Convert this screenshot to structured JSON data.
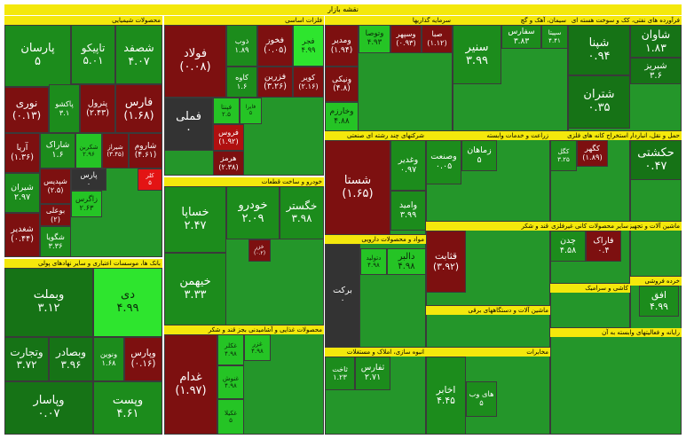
{
  "title": "نقشه بازار",
  "sectors": [
    {
      "name": "محصولات شیمیایی",
      "cells": [
        {
          "name": "پارسان",
          "label": "۵",
          "color": "#1c8c1c"
        },
        {
          "name": "تاپیکو",
          "label": "۵.۰۱",
          "color": "#1c8c1c"
        },
        {
          "name": "شصفد",
          "label": "۴.۰۷",
          "color": "#1c8c1c"
        },
        {
          "name": "نوری",
          "label": "(۰.۱۳)",
          "color": "#7d1010"
        },
        {
          "name": "پاکشو",
          "label": "۳.۱",
          "color": "#1c8c1c"
        },
        {
          "name": "پترول",
          "label": "(۲.۴۳)",
          "color": "#7d1010"
        },
        {
          "name": "فارس",
          "label": "(۱.۶۸)",
          "color": "#7d1010"
        },
        {
          "name": "آریا",
          "label": "(۱.۳۶)",
          "color": "#7d1010"
        },
        {
          "name": "شاراک",
          "label": "۱.۶",
          "color": "#1c8c1c"
        },
        {
          "name": "شکربن",
          "label": "۲.۹۶",
          "color": "#25c425"
        },
        {
          "name": "شیراز",
          "label": "(۳.۴۵)",
          "color": "#7d1010"
        },
        {
          "name": "شاروم",
          "label": "(۴.۶۱)",
          "color": "#7d1010"
        },
        {
          "name": "شیران",
          "label": "۲.۹۷",
          "color": "#1c8c1c"
        },
        {
          "name": "شپدیس",
          "label": "(۲.۵)",
          "color": "#7d1010"
        },
        {
          "name": "پارس",
          "label": "۰",
          "color": "#333333"
        },
        {
          "name": "کلر",
          "label": "۵",
          "color": "#e31414"
        },
        {
          "name": "زاگرس",
          "label": "۲.۶۳",
          "color": "#25c425"
        },
        {
          "name": "بوعلی",
          "label": "(۲)",
          "color": "#7d1010"
        },
        {
          "name": "شغدیر",
          "label": "(۰.۴۴)",
          "color": "#7d1010"
        },
        {
          "name": "شگویا",
          "label": "۳.۳۶",
          "color": "#1c8c1c"
        }
      ]
    },
    {
      "name": "بانک ها، موسسات اعتباری و سایر نهادهای پولی",
      "cells": [
        {
          "name": "وبملت",
          "label": "۳.۱۲",
          "color": "#167316"
        },
        {
          "name": "دی",
          "label": "۴.۹۹",
          "color": "#2ee52e"
        },
        {
          "name": "وتجارت",
          "label": "۳.۷۲",
          "color": "#167316"
        },
        {
          "name": "وبصادر",
          "label": "۳.۹۶",
          "color": "#167316"
        },
        {
          "name": "ونوین",
          "label": "۱.۶۸",
          "color": "#1c8c1c"
        },
        {
          "name": "وپارس",
          "label": "(۰.۱۶)",
          "color": "#7d1010"
        },
        {
          "name": "وپاسار",
          "label": "۰.۰۷",
          "color": "#167316"
        },
        {
          "name": "وپست",
          "label": "۴.۶۱",
          "color": "#1c8c1c"
        }
      ]
    },
    {
      "name": "فلزات اساسی",
      "cells": [
        {
          "name": "فولاد",
          "label": "(۰.۰۸)",
          "color": "#7d1010"
        },
        {
          "name": "ذوب",
          "label": "۱.۸۹",
          "color": "#1c8c1c"
        },
        {
          "name": "فخوز",
          "label": "(۰.۰۵)",
          "color": "#7d1010"
        },
        {
          "name": "فجر",
          "label": "۴.۹۹",
          "color": "#2ee52e"
        },
        {
          "name": "کاوه",
          "label": "۱.۶",
          "color": "#1c8c1c"
        },
        {
          "name": "فزرین",
          "label": "(۳.۲۶)",
          "color": "#7d1010"
        },
        {
          "name": "کویر",
          "label": "(۲.۱۶)",
          "color": "#7d1010"
        },
        {
          "name": "فملی",
          "label": "۰",
          "color": "#333333"
        },
        {
          "name": "فپنتا",
          "label": "۲.۵",
          "color": "#25c425"
        },
        {
          "name": "فایرا",
          "label": "۵",
          "color": "#25c425"
        },
        {
          "name": "فروس",
          "label": "(۱.۹۲)",
          "color": "#b01010"
        },
        {
          "name": "هرمز",
          "label": "(۲.۳۸)",
          "color": "#7d1010"
        }
      ]
    },
    {
      "name": "خودرو و ساخت قطعات",
      "cells": [
        {
          "name": "خساپا",
          "label": "۲.۴۷",
          "color": "#1c8c1c"
        },
        {
          "name": "خودرو",
          "label": "۲.۰۹",
          "color": "#1c8c1c"
        },
        {
          "name": "خگستر",
          "label": "۳.۹۸",
          "color": "#1c8c1c"
        },
        {
          "name": "خیهمن",
          "label": "۳.۳۳",
          "color": "#1c8c1c"
        },
        {
          "name": "خزر",
          "label": "(۰.۲)",
          "color": "#7d1010"
        }
      ]
    },
    {
      "name": "محصولات غذایی و آشامیدنی بجز قند و شکر",
      "cells": [
        {
          "name": "غدام",
          "label": "(۱.۹۷)",
          "color": "#7d1010"
        },
        {
          "name": "غکلر",
          "label": "۴.۹۸",
          "color": "#25c425"
        },
        {
          "name": "غنوش",
          "label": "۴.۹۸",
          "color": "#25c425"
        },
        {
          "name": "غکیلا",
          "label": "۵",
          "color": "#25c425"
        },
        {
          "name": "غزر",
          "label": "۴.۹۸",
          "color": "#25c425"
        }
      ]
    },
    {
      "name": "سرمایه گذاریها",
      "cells": [
        {
          "name": "ومدیر",
          "label": "(۱.۹۴)",
          "color": "#7d1010"
        },
        {
          "name": "وتوصا",
          "label": "۴.۹۳",
          "color": "#25c425"
        },
        {
          "name": "وسپهر",
          "label": "(۰.۹۳)",
          "color": "#7d1010"
        },
        {
          "name": "صبا",
          "label": "(۱.۱۲)",
          "color": "#7d1010"
        },
        {
          "name": "ونیکی",
          "label": "(۴.۸)",
          "color": "#7d1010"
        },
        {
          "name": "وخارزم",
          "label": "۴.۸۸",
          "color": "#25c425"
        }
      ]
    },
    {
      "name": "شرکتهای چند رشته ای صنعتی",
      "cells": [
        {
          "name": "شستا",
          "label": "(۱.۶۵)",
          "color": "#7d1010"
        },
        {
          "name": "وغدیر",
          "label": "۰.۹۷",
          "color": "#1c8c1c"
        },
        {
          "name": "وامید",
          "label": "۳.۹۹",
          "color": "#1c8c1c"
        }
      ]
    },
    {
      "name": "مواد و محصولات دارویی",
      "cells": [
        {
          "name": "برکت",
          "label": "۰",
          "color": "#333333"
        },
        {
          "name": "دتولید",
          "label": "۴.۹۸",
          "color": "#25c425"
        },
        {
          "name": "دالبر",
          "label": "۴.۹۸",
          "color": "#25c425"
        }
      ]
    },
    {
      "name": "انبوه سازی، املاک و مستغلات",
      "cells": [
        {
          "name": "ثاخت",
          "label": "۱.۲۳",
          "color": "#1c8c1c"
        },
        {
          "name": "ثفارس",
          "label": "۲.۷۱",
          "color": "#1c8c1c"
        }
      ]
    },
    {
      "name": "سیمان، آهک و گچ",
      "cells": [
        {
          "name": "سنیر",
          "label": "۳.۹۹",
          "color": "#1c8c1c"
        },
        {
          "name": "سفارس",
          "label": "۳.۸۳",
          "color": "#1c8c1c"
        },
        {
          "name": "سپیتا",
          "label": "۴.۴۱",
          "color": "#1c8c1c"
        }
      ]
    },
    {
      "name": "فرآورده های نفتی، کک و سوخت هسته ای",
      "cells": [
        {
          "name": "شپنا",
          "label": "۰.۹۴",
          "color": "#167316"
        },
        {
          "name": "شاوان",
          "label": "۱.۸۳",
          "color": "#167316"
        },
        {
          "name": "شبریز",
          "label": "۳.۶",
          "color": "#167316"
        },
        {
          "name": "شتران",
          "label": "۰.۳۵",
          "color": "#167316"
        }
      ]
    },
    {
      "name": "استخراج کانه های فلزی",
      "cells": [
        {
          "name": "کگل",
          "label": "۳.۲۵",
          "color": "#1c8c1c"
        },
        {
          "name": "کگهر",
          "label": "(۱.۸۹)",
          "color": "#7d1010"
        }
      ]
    },
    {
      "name": "حمل و نقل، انبارداری و ارتباطات",
      "cells": [
        {
          "name": "حکشتی",
          "label": "۰.۴۷",
          "color": "#167316"
        }
      ]
    },
    {
      "name": "زراعت و خدمات وابسته",
      "cells": [
        {
          "name": "وصنعت",
          "label": "۰.۰۵",
          "color": "#1c8c1c"
        },
        {
          "name": "زماهان",
          "label": "۵",
          "color": "#1c8c1c"
        }
      ]
    },
    {
      "name": "قند و شکر",
      "cells": [
        {
          "name": "قثابت",
          "label": "(۳.۹۲)",
          "color": "#7d1010"
        }
      ]
    },
    {
      "name": "ماشین آلات و دستگاههای برقی",
      "cells": []
    },
    {
      "name": "مخابرات",
      "cells": [
        {
          "name": "اخابر",
          "label": "۴.۴۵",
          "color": "#1c8c1c"
        },
        {
          "name": "های وب",
          "label": "۵",
          "color": "#1c8c1c"
        }
      ]
    },
    {
      "name": "سایر محصولات کانی غیرفلزی",
      "cells": [
        {
          "name": "چدن",
          "label": "۴.۵۸",
          "color": "#1c8c1c"
        },
        {
          "name": "فاراک",
          "label": "۰.۴",
          "color": "#7d1010"
        }
      ]
    },
    {
      "name": "ماشین آلات و تجهیزات",
      "cells": []
    },
    {
      "name": "خرده فروشی",
      "cells": [
        {
          "name": "افق",
          "label": "۴.۹۹",
          "color": "#1c8c1c"
        }
      ]
    },
    {
      "name": "کاشی و سرامیک",
      "cells": []
    },
    {
      "name": "رایانه و فعالیتهای وابسته به آن",
      "cells": []
    }
  ]
}
